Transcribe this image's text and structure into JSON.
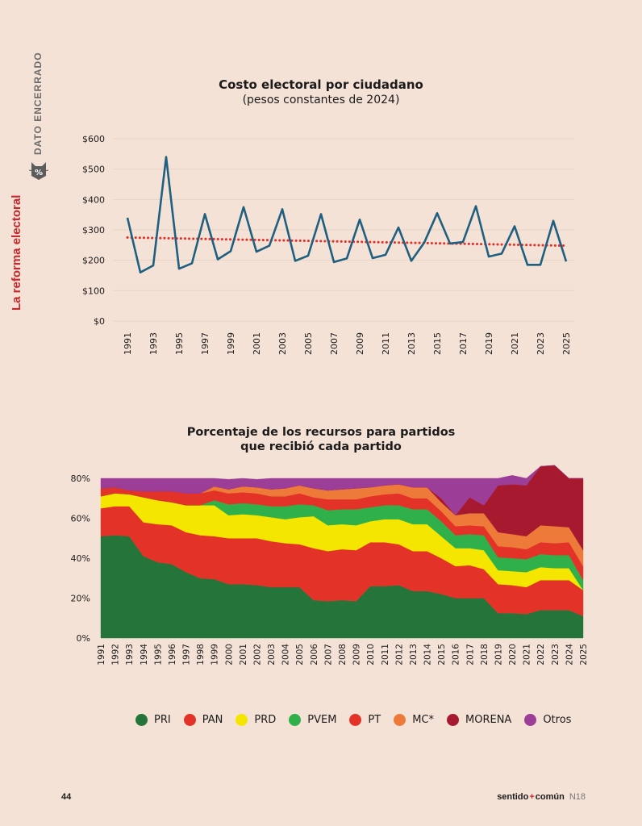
{
  "sidebar": {
    "section": "DATO ENCERRADO",
    "topic": "La reforma electoral",
    "badge": "%"
  },
  "footer": {
    "page_number": "44",
    "brand_left": "sentido",
    "brand_plus": "+",
    "brand_right": "común",
    "issue": "N18"
  },
  "chart_data": [
    {
      "type": "line",
      "title": "Costo electoral por ciudadano",
      "subtitle": "(pesos constantes de 2024)",
      "x": [
        1991,
        1992,
        1993,
        1994,
        1995,
        1996,
        1997,
        1998,
        1999,
        2000,
        2001,
        2002,
        2003,
        2004,
        2005,
        2006,
        2007,
        2008,
        2009,
        2010,
        2011,
        2012,
        2013,
        2014,
        2015,
        2016,
        2017,
        2018,
        2019,
        2020,
        2021,
        2022,
        2023,
        2024,
        2025
      ],
      "x_ticks": [
        "1991",
        "1993",
        "1995",
        "1997",
        "1999",
        "2001",
        "2003",
        "2005",
        "2007",
        "2009",
        "2011",
        "2013",
        "2015",
        "2017",
        "2019",
        "2021",
        "2023",
        "2025"
      ],
      "y_ticks": [
        "$0",
        "$100",
        "$200",
        "$300",
        "$400",
        "$500",
        "$600"
      ],
      "ylim": [
        0,
        600
      ],
      "grid": true,
      "series": [
        {
          "color": "#1f5f80",
          "values": [
            340,
            160,
            183,
            540,
            172,
            190,
            352,
            203,
            230,
            375,
            228,
            248,
            368,
            198,
            215,
            352,
            194,
            206,
            334,
            207,
            218,
            308,
            198,
            258,
            355,
            255,
            260,
            378,
            212,
            222,
            312,
            185,
            185,
            330,
            196
          ]
        }
      ],
      "trend": {
        "style": "dotted",
        "color": "#e0322b",
        "start": 275,
        "end": 248
      }
    },
    {
      "type": "area",
      "title": "Porcentaje de los recursos para partidos que recibió cada partido",
      "categories": [
        "1991",
        "1992",
        "1993",
        "1994",
        "1995",
        "1996",
        "1997",
        "1998",
        "1999",
        "2000",
        "2001",
        "2002",
        "2003",
        "2004",
        "2005",
        "2006",
        "2007",
        "2008",
        "2009",
        "2010",
        "2011",
        "2012",
        "2013",
        "2014",
        "2015",
        "2016",
        "2017",
        "2018",
        "2019",
        "2020",
        "2021",
        "2022",
        "2023",
        "2024",
        "2025"
      ],
      "y_ticks": [
        "0%",
        "20%",
        "40%",
        "60%",
        "80%"
      ],
      "ylim": [
        0,
        80
      ],
      "series": [
        {
          "name": "PRI",
          "color": "#25743a",
          "values": [
            51,
            51.5,
            51,
            41,
            38,
            37,
            33,
            30,
            29.5,
            27,
            27,
            26.5,
            25.5,
            25.5,
            25.5,
            19,
            18.5,
            19,
            18.5,
            26,
            26,
            26.5,
            23.5,
            23.5,
            22,
            20,
            20,
            20,
            12.5,
            12.5,
            12,
            14,
            14,
            14,
            11
          ]
        },
        {
          "name": "PAN",
          "color": "#e33328",
          "values": [
            14,
            14.5,
            15,
            17,
            19,
            19.5,
            20,
            21.5,
            21.5,
            23,
            23,
            23.5,
            23,
            22,
            21.5,
            26,
            25,
            25.5,
            25.5,
            22,
            22,
            20.5,
            20,
            20,
            18,
            16,
            16.5,
            14.5,
            14.5,
            14,
            13.5,
            15,
            15,
            15,
            13
          ]
        },
        {
          "name": "PRD",
          "color": "#f5e600",
          "values": [
            6,
            6.5,
            6,
            12.5,
            12,
            11.5,
            13.5,
            15,
            15.5,
            11.5,
            12,
            11.5,
            12,
            12,
            13.5,
            16,
            13,
            12.5,
            12.5,
            10.5,
            11.5,
            12.5,
            13.5,
            13.5,
            11,
            9,
            8.5,
            9.5,
            7,
            7,
            7.5,
            6.5,
            6,
            6,
            0
          ]
        },
        {
          "name": "PVEM",
          "color": "#2fb04a",
          "values": [
            0,
            0,
            0,
            0,
            0,
            0,
            0,
            0,
            2.5,
            5.5,
            5.5,
            5.5,
            5.5,
            6.5,
            6.5,
            5.5,
            7.5,
            7.5,
            8,
            7,
            7,
            7,
            7.5,
            7.5,
            7.5,
            6.5,
            7,
            7.5,
            6.5,
            6.5,
            6.5,
            6.5,
            6.5,
            6.5,
            5
          ]
        },
        {
          "name": "PT",
          "color": "#e33328",
          "values": [
            4,
            3,
            2,
            3,
            4.5,
            5.5,
            6,
            6,
            5,
            5.5,
            5.5,
            5.5,
            5,
            5,
            5.5,
            4,
            5.5,
            5,
            5,
            5.5,
            5.5,
            6,
            5.5,
            5.5,
            5,
            4.5,
            4.5,
            4.5,
            5.5,
            5.5,
            5,
            6,
            6,
            6.5,
            7
          ]
        },
        {
          "name": "MC*",
          "color": "#ee7a3a",
          "values": [
            0,
            0,
            0,
            0,
            0,
            0,
            0,
            0,
            2,
            2,
            3,
            3,
            3.5,
            4,
            4,
            4.5,
            4.5,
            5,
            5.5,
            4.5,
            4.5,
            4.5,
            5.5,
            5.5,
            4.5,
            5.5,
            6,
            6.5,
            7,
            6.5,
            6.5,
            8.5,
            8.5,
            7.5,
            8
          ]
        },
        {
          "name": "MORENA",
          "color": "#a6192e",
          "values": [
            0,
            0,
            0,
            0,
            0,
            0,
            0,
            0,
            0,
            0,
            0,
            0,
            0,
            0,
            0,
            0,
            0,
            0,
            0,
            0,
            0,
            0,
            0,
            0,
            2,
            0,
            8,
            4,
            23.5,
            25,
            25.5,
            29.5,
            30.5,
            24.5,
            36
          ]
        },
        {
          "name": "Otros",
          "color": "#9c3d98",
          "values": [
            5,
            4.5,
            6,
            6.5,
            6.5,
            6.5,
            7.5,
            7.5,
            4,
            5,
            4,
            4,
            5.5,
            5,
            3.5,
            5,
            6,
            5.5,
            5,
            4.5,
            3.5,
            3,
            4.5,
            4.5,
            10,
            18.5,
            9.5,
            13.5,
            3.5,
            4.5,
            3.5,
            0,
            0,
            0,
            0
          ]
        }
      ],
      "legend": [
        "PRI",
        "PAN",
        "PRD",
        "PVEM",
        "PT",
        "MC*",
        "MORENA",
        "Otros"
      ],
      "legend_position": "bottom"
    }
  ]
}
